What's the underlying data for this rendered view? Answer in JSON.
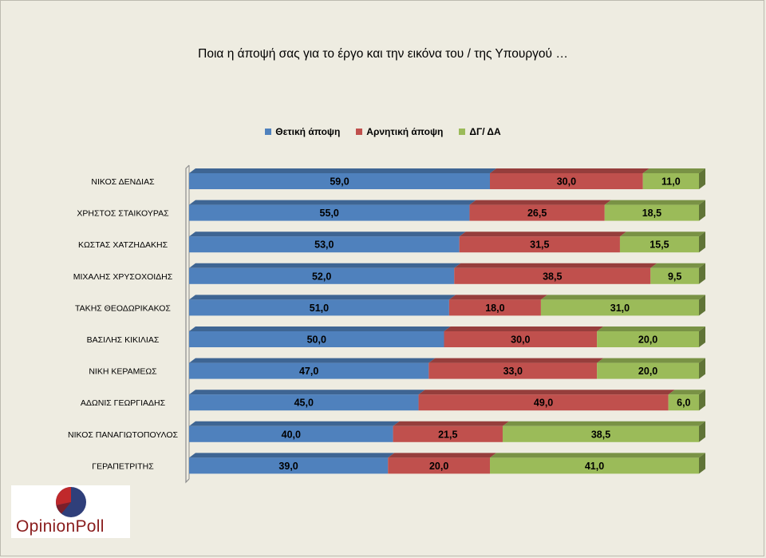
{
  "chart_data": {
    "type": "bar",
    "orientation": "horizontal",
    "stacked": true,
    "percent_scale": true,
    "title": "Ποια η άποψή σας για το έργο και την εικόνα του / της Υπουργού …",
    "legend_position": "top",
    "grid": false,
    "xlim": [
      0,
      100
    ],
    "categories": [
      "ΝΙΚΟΣ ΔΕΝΔΙΑΣ",
      "ΧΡΗΣΤΟΣ ΣΤΑΙΚΟΥΡΑΣ",
      "ΚΩΣΤΑΣ ΧΑΤΖΗΔΑΚΗΣ",
      "ΜΙΧΑΛΗΣ ΧΡΥΣΟΧΟΙΔΗΣ",
      "ΤΑΚΗΣ ΘΕΟΔΩΡΙΚΑΚΟΣ",
      "ΒΑΣΙΛΗΣ ΚΙΚΙΛΙΑΣ",
      "ΝΙΚΗ ΚΕΡΑΜΕΩΣ",
      "ΑΔΩΝΙΣ ΓΕΩΡΓΙΑΔΗΣ",
      "ΝΙΚΟΣ ΠΑΝΑΓΙΩΤΟΠΟΥΛΟΣ",
      "ΓΕΡΑΠΕΤΡΙΤΗΣ"
    ],
    "series": [
      {
        "name": "Θετική άποψη",
        "color": "#4f81bd",
        "values": [
          59.0,
          55.0,
          53.0,
          52.0,
          51.0,
          50.0,
          47.0,
          45.0,
          40.0,
          39.0
        ]
      },
      {
        "name": "Αρνητική άποψη",
        "color": "#c0504d",
        "values": [
          30.0,
          26.5,
          31.5,
          38.5,
          18.0,
          30.0,
          33.0,
          49.0,
          21.5,
          20.0
        ]
      },
      {
        "name": "ΔΓ/ ΔΑ",
        "color": "#9bbb59",
        "values": [
          11.0,
          18.5,
          15.5,
          9.5,
          31.0,
          20.0,
          20.0,
          6.0,
          38.5,
          41.0
        ]
      }
    ]
  },
  "logo": {
    "text": "OpinionPoll"
  }
}
